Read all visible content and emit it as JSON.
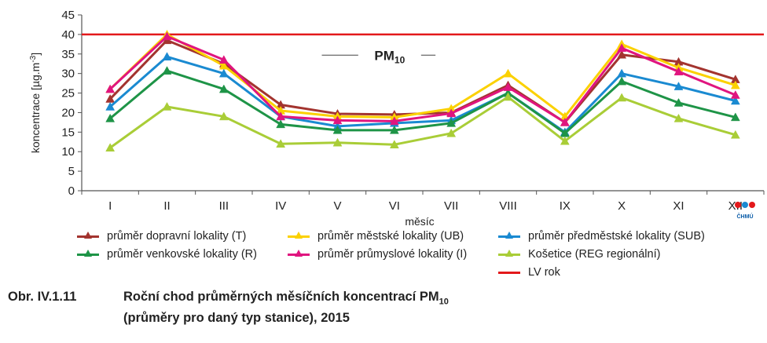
{
  "chart_data": {
    "type": "line",
    "categories": [
      "I",
      "II",
      "III",
      "IV",
      "V",
      "VI",
      "VII",
      "VIII",
      "IX",
      "X",
      "XI",
      "XII"
    ],
    "ylabel_main": "koncentrace [µg.m",
    "ylabel_sup": "-3",
    "ylabel_tail": "]",
    "xlabel": "měsíc",
    "ylim": [
      0,
      45
    ],
    "yticks": [
      0,
      5,
      10,
      15,
      20,
      25,
      30,
      35,
      40,
      45
    ],
    "grid": false,
    "limit_line": {
      "value": 40,
      "name": "LV rok",
      "color": "#e3191b"
    },
    "annotation": {
      "main": "PM",
      "sub": "10"
    },
    "series": [
      {
        "name": "průměr dopravní lokality (T)",
        "color": "#a3342f",
        "values": [
          23.5,
          38.5,
          32.5,
          22,
          19.7,
          19.5,
          20,
          27,
          17.5,
          34.8,
          33,
          28.5
        ]
      },
      {
        "name": "průměr městské lokality (UB)",
        "color": "#fbd100",
        "values": [
          26,
          40,
          32,
          20.5,
          19,
          18.8,
          21,
          30,
          19,
          37.5,
          31.5,
          27
        ]
      },
      {
        "name": "průměr předměstské lokality (SUB)",
        "color": "#1a8ad1",
        "values": [
          21.5,
          34.3,
          30,
          19,
          16.5,
          17.3,
          18,
          25,
          15,
          30,
          26.7,
          23
        ]
      },
      {
        "name": "průměr venkovské lokality (R)",
        "color": "#1e9447",
        "values": [
          18.5,
          30.7,
          26,
          17,
          15.5,
          15.5,
          17.3,
          25,
          14.7,
          28,
          22.5,
          18.8
        ]
      },
      {
        "name": "průměr průmyslové lokality (I)",
        "color": "#e0157f",
        "values": [
          26,
          39.5,
          33.5,
          19,
          18,
          17.8,
          19.8,
          26.5,
          17.5,
          36.5,
          30.5,
          24.5
        ]
      },
      {
        "name": "Košetice (REG regionální)",
        "color": "#a9cd37",
        "values": [
          11,
          21.5,
          19,
          12,
          12.3,
          11.8,
          14.7,
          24,
          12.7,
          23.8,
          18.5,
          14.3
        ]
      }
    ]
  },
  "legend": {
    "items": [
      {
        "label": "průměr dopravní lokality (T)",
        "color": "#a3342f",
        "marker": true
      },
      {
        "label": "průměr městské lokality (UB)",
        "color": "#fbd100",
        "marker": true
      },
      {
        "label": "průměr předměstské lokality (SUB)",
        "color": "#1a8ad1",
        "marker": true
      },
      {
        "label": "průměr venkovské lokality (R)",
        "color": "#1e9447",
        "marker": true
      },
      {
        "label": "průměr průmyslové lokality (I)",
        "color": "#e0157f",
        "marker": true
      },
      {
        "label": "Košetice (REG regionální)",
        "color": "#a9cd37",
        "marker": true
      },
      {
        "label": "LV rok",
        "color": "#e3191b",
        "marker": false
      }
    ]
  },
  "caption": {
    "number": "Obr. IV.1.11",
    "line1_main": "Roční chod průměrných měsíčních koncentrací PM",
    "line1_sub": "10",
    "line2": "(průměry pro daný typ stanice), 2015"
  },
  "logo": {
    "text": "ČHMÚ",
    "colors": [
      "#e3191b",
      "#1a8ad1"
    ]
  }
}
